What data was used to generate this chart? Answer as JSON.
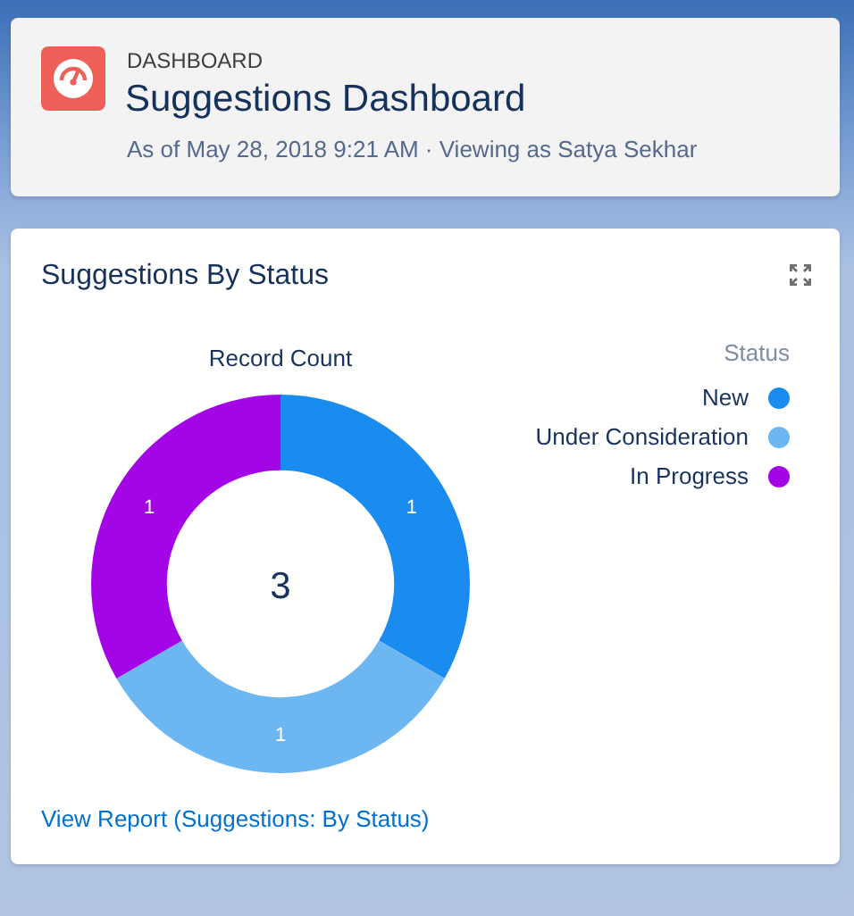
{
  "chart_data": {
    "type": "donut",
    "title": "Suggestions By Status",
    "subtitle": "Record Count",
    "legend_title": "Status",
    "categories": [
      "New",
      "Under Consideration",
      "In Progress"
    ],
    "values": [
      1,
      1,
      1
    ],
    "colors": [
      "#1b8cef",
      "#6cb6f2",
      "#a405e6"
    ],
    "data_labels": true,
    "legend": "top right",
    "annotations": [
      "DASHBOARD",
      "Suggestions Dashboard",
      "As of May 28, 2018 9:21 AM · Viewing as Satya Sekhar",
      "3",
      "View Report (Suggestions: By Status)"
    ]
  }
}
